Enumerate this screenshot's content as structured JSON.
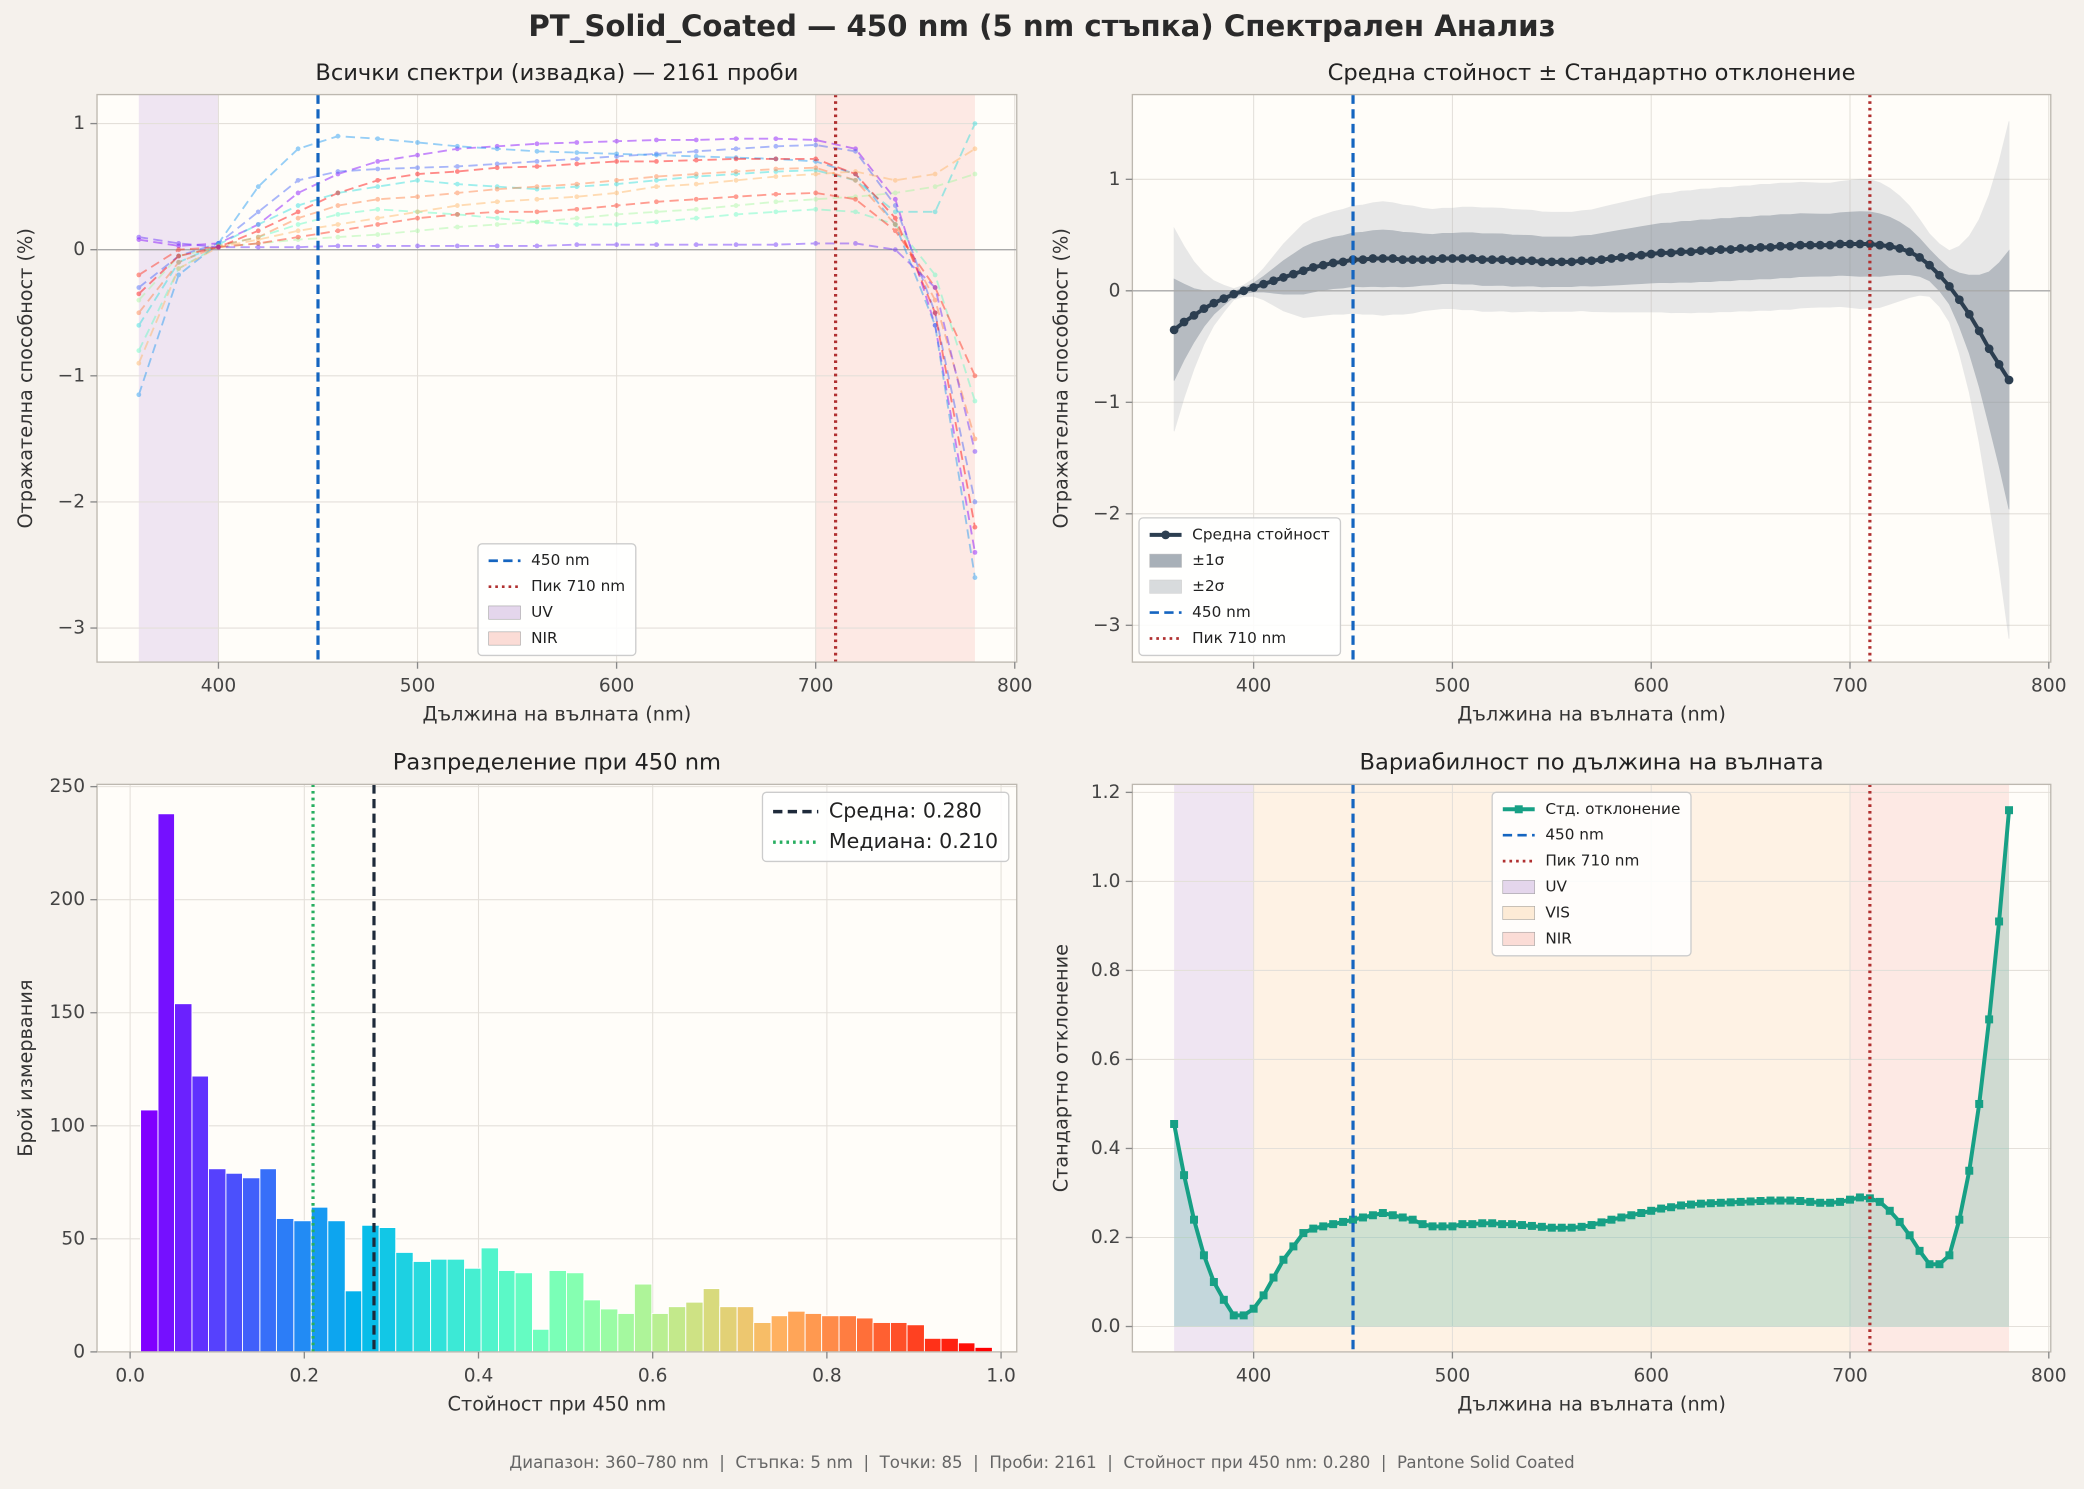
{
  "title": "PT_Solid_Coated — 450 nm (5 nm стъпка) Спектрален Анализ",
  "footer": "Диапазон: 360–780 nm  |  Стъпка: 5 nm  |  Точки: 85  |  Проби: 2161  |  Стойност при 450 nm: 0.280  |  Pantone Solid Coated",
  "chart_data": [
    {
      "type": "line",
      "title": "Всички спектри (извадка) — 2161 проби",
      "xlabel": "Дължина на вълната (nm)",
      "ylabel": "Отражателна способност (%)",
      "xlim": [
        339,
        801
      ],
      "ylim": [
        -3.27,
        1.23
      ],
      "xticks": [
        400,
        500,
        600,
        700,
        800
      ],
      "yticks": [
        {
          "value": -3,
          "label": "−3"
        },
        {
          "value": -2,
          "label": "−2"
        },
        {
          "value": -1,
          "label": "−1"
        },
        0,
        1
      ],
      "grid": true,
      "legend": "lower center",
      "alpha": 0.45,
      "hlines": [
        0
      ],
      "x": [
        360,
        380,
        400,
        420,
        440,
        460,
        480,
        500,
        520,
        540,
        560,
        580,
        600,
        620,
        640,
        660,
        680,
        700,
        720,
        740,
        760,
        780
      ],
      "series": [
        {
          "color": "#8000ff",
          "style": "dashed",
          "marker": "circle",
          "values": [
            0.08,
            0.03,
            0.05,
            0.2,
            0.45,
            0.6,
            0.7,
            0.75,
            0.8,
            0.82,
            0.84,
            0.85,
            0.86,
            0.87,
            0.87,
            0.88,
            0.88,
            0.87,
            0.8,
            0.4,
            -0.6,
            -2.4
          ]
        },
        {
          "color": "#4062fa",
          "style": "dashed",
          "marker": "circle",
          "values": [
            -0.3,
            -0.05,
            0.05,
            0.3,
            0.55,
            0.62,
            0.64,
            0.65,
            0.66,
            0.68,
            0.7,
            0.72,
            0.74,
            0.76,
            0.78,
            0.8,
            0.82,
            0.83,
            0.78,
            0.35,
            -0.5,
            -2.0
          ]
        },
        {
          "color": "#1996f3",
          "style": "dashed",
          "marker": "circle",
          "values": [
            -1.15,
            -0.2,
            0.05,
            0.5,
            0.8,
            0.9,
            0.88,
            0.85,
            0.82,
            0.8,
            0.78,
            0.77,
            0.76,
            0.75,
            0.74,
            0.73,
            0.72,
            0.7,
            0.6,
            0.2,
            -0.6,
            -2.6
          ]
        },
        {
          "color": "#2adddd",
          "style": "dashed",
          "marker": "circle",
          "values": [
            -0.6,
            -0.1,
            0.04,
            0.2,
            0.35,
            0.45,
            0.5,
            0.55,
            0.52,
            0.5,
            0.48,
            0.5,
            0.52,
            0.55,
            0.58,
            0.6,
            0.62,
            0.63,
            0.55,
            0.3,
            0.3,
            1.0
          ]
        },
        {
          "color": "#62fbc4",
          "style": "dashed",
          "marker": "circle",
          "values": [
            -0.8,
            -0.15,
            0.03,
            0.1,
            0.2,
            0.28,
            0.32,
            0.3,
            0.28,
            0.25,
            0.22,
            0.2,
            0.2,
            0.22,
            0.25,
            0.28,
            0.3,
            0.32,
            0.3,
            0.2,
            -0.2,
            -1.2
          ]
        },
        {
          "color": "#a4f89f",
          "style": "dashed",
          "marker": "circle",
          "values": [
            -0.4,
            -0.05,
            0.02,
            0.05,
            0.08,
            0.1,
            0.12,
            0.15,
            0.18,
            0.2,
            0.22,
            0.25,
            0.28,
            0.3,
            0.32,
            0.35,
            0.38,
            0.4,
            0.42,
            0.45,
            0.5,
            0.6
          ]
        },
        {
          "color": "#ffb360",
          "style": "dashed",
          "marker": "circle",
          "values": [
            -0.9,
            -0.15,
            0.02,
            0.08,
            0.15,
            0.2,
            0.25,
            0.3,
            0.35,
            0.38,
            0.4,
            0.42,
            0.45,
            0.5,
            0.52,
            0.55,
            0.58,
            0.6,
            0.62,
            0.55,
            0.6,
            0.8
          ]
        },
        {
          "color": "#ff7e41",
          "style": "dashed",
          "marker": "circle",
          "values": [
            -0.5,
            -0.1,
            0.03,
            0.1,
            0.25,
            0.35,
            0.4,
            0.42,
            0.45,
            0.48,
            0.5,
            0.52,
            0.55,
            0.58,
            0.6,
            0.62,
            0.64,
            0.65,
            0.55,
            0.2,
            -0.4,
            -1.5
          ]
        },
        {
          "color": "#ff0000",
          "style": "dashed",
          "marker": "circle",
          "values": [
            -0.35,
            -0.05,
            0.02,
            0.15,
            0.3,
            0.45,
            0.55,
            0.6,
            0.62,
            0.65,
            0.66,
            0.68,
            0.7,
            0.7,
            0.71,
            0.72,
            0.72,
            0.72,
            0.6,
            0.25,
            -0.5,
            -2.2
          ]
        },
        {
          "color": "#ff2a15",
          "style": "dashed",
          "marker": "circle",
          "values": [
            -0.2,
            0.0,
            0.02,
            0.05,
            0.1,
            0.15,
            0.2,
            0.25,
            0.28,
            0.3,
            0.3,
            0.32,
            0.35,
            0.38,
            0.4,
            0.42,
            0.44,
            0.45,
            0.4,
            0.15,
            -0.3,
            -1.0
          ]
        },
        {
          "color": "#6629fe",
          "style": "dashed",
          "marker": "circle",
          "values": [
            0.1,
            0.05,
            0.02,
            0.02,
            0.02,
            0.03,
            0.03,
            0.03,
            0.03,
            0.03,
            0.03,
            0.04,
            0.04,
            0.04,
            0.04,
            0.04,
            0.04,
            0.05,
            0.05,
            0.0,
            -0.3,
            -1.6
          ]
        }
      ],
      "vlines": [
        {
          "name": "450 nm",
          "value": 450,
          "color": "#1565c0",
          "style": "dashed"
        },
        {
          "name": "Пик 710 nm",
          "value": 710,
          "color": "#b03030",
          "style": "dotted"
        }
      ],
      "spans": [
        {
          "name": "UV",
          "range": [
            360,
            400
          ],
          "color": "#e4d6ec"
        },
        {
          "name": "NIR",
          "range": [
            700,
            780
          ],
          "color": "#fbdcd6"
        }
      ]
    },
    {
      "type": "line",
      "title": "Средна стойност ± Стандартно отклонение",
      "xlabel": "Дължина на вълната (nm)",
      "ylabel": "Отражателна способност (%)",
      "xlim": [
        339,
        801
      ],
      "ylim": [
        -3.33,
        1.76
      ],
      "xticks": [
        400,
        500,
        600,
        700,
        800
      ],
      "yticks": [
        {
          "value": -3,
          "label": "−3"
        },
        {
          "value": -2,
          "label": "−2"
        },
        {
          "value": -1,
          "label": "−1"
        },
        0,
        1
      ],
      "grid": true,
      "legend": "lower left",
      "hlines": [
        0
      ],
      "x": [
        360,
        365,
        370,
        375,
        380,
        385,
        390,
        395,
        400,
        405,
        410,
        415,
        420,
        425,
        430,
        435,
        440,
        445,
        450,
        455,
        460,
        465,
        470,
        475,
        480,
        485,
        490,
        495,
        500,
        505,
        510,
        515,
        520,
        525,
        530,
        535,
        540,
        545,
        550,
        555,
        560,
        565,
        570,
        575,
        580,
        585,
        590,
        595,
        600,
        605,
        610,
        615,
        620,
        625,
        630,
        635,
        640,
        645,
        650,
        655,
        660,
        665,
        670,
        675,
        680,
        685,
        690,
        695,
        700,
        705,
        710,
        715,
        720,
        725,
        730,
        735,
        740,
        745,
        750,
        755,
        760,
        765,
        770,
        775,
        780
      ],
      "series": [
        {
          "name": "Средна стойност",
          "color": "#2c3e50",
          "style": "solid",
          "marker": "circle",
          "values": [
            -0.35,
            -0.28,
            -0.22,
            -0.16,
            -0.11,
            -0.07,
            -0.03,
            0.0,
            0.03,
            0.06,
            0.09,
            0.12,
            0.15,
            0.18,
            0.21,
            0.23,
            0.25,
            0.26,
            0.28,
            0.28,
            0.29,
            0.29,
            0.29,
            0.28,
            0.28,
            0.28,
            0.28,
            0.29,
            0.29,
            0.29,
            0.29,
            0.28,
            0.28,
            0.28,
            0.27,
            0.27,
            0.27,
            0.26,
            0.26,
            0.26,
            0.26,
            0.27,
            0.27,
            0.28,
            0.29,
            0.3,
            0.31,
            0.32,
            0.33,
            0.34,
            0.34,
            0.35,
            0.35,
            0.36,
            0.36,
            0.37,
            0.37,
            0.38,
            0.38,
            0.39,
            0.39,
            0.4,
            0.4,
            0.41,
            0.41,
            0.41,
            0.41,
            0.42,
            0.42,
            0.42,
            0.42,
            0.41,
            0.4,
            0.38,
            0.35,
            0.3,
            0.23,
            0.14,
            0.04,
            -0.08,
            -0.21,
            -0.36,
            -0.52,
            -0.66,
            -0.8
          ]
        }
      ],
      "bands": [
        {
          "name": "±1σ",
          "k": 1,
          "color": "#7b8794",
          "opacity": 0.45
        },
        {
          "name": "±2σ",
          "k": 2,
          "color": "#b3b8be",
          "opacity": 0.3
        }
      ],
      "vlines": [
        {
          "name": "450 nm",
          "value": 450,
          "color": "#1565c0",
          "style": "dashed"
        },
        {
          "name": "Пик 710 nm",
          "value": 710,
          "color": "#b03030",
          "style": "dotted"
        }
      ]
    },
    {
      "type": "histogram",
      "title": "Разпределение при 450 nm",
      "xlabel": "Стойност при 450 nm",
      "ylabel": "Брой измервания",
      "xlim": [
        -0.038,
        1.018
      ],
      "ylim": [
        0,
        251
      ],
      "xticks": [
        {
          "value": 0,
          "label": "0.0"
        },
        0.2,
        0.4,
        0.6,
        0.8,
        {
          "value": 1,
          "label": "1.0"
        }
      ],
      "yticks": [
        0,
        50,
        100,
        150,
        200,
        250
      ],
      "grid": true,
      "legend": "upper right",
      "colormap": "rainbow",
      "bins": [
        0.012,
        0.032,
        0.051,
        0.071,
        0.09,
        0.11,
        0.129,
        0.149,
        0.168,
        0.188,
        0.208,
        0.227,
        0.247,
        0.266,
        0.286,
        0.305,
        0.325,
        0.345,
        0.364,
        0.384,
        0.403,
        0.423,
        0.442,
        0.462,
        0.481,
        0.501,
        0.521,
        0.54,
        0.56,
        0.579,
        0.599,
        0.618,
        0.638,
        0.658,
        0.677,
        0.697,
        0.716,
        0.736,
        0.755,
        0.775,
        0.794,
        0.814,
        0.834,
        0.853,
        0.873,
        0.892,
        0.912,
        0.931,
        0.951,
        0.97,
        0.99
      ],
      "values": [
        107,
        238,
        154,
        122,
        81,
        79,
        77,
        81,
        59,
        58,
        64,
        58,
        27,
        56,
        55,
        44,
        40,
        41,
        41,
        37,
        46,
        36,
        35,
        10,
        36,
        35,
        23,
        19,
        17,
        30,
        17,
        20,
        22,
        28,
        20,
        20,
        13,
        16,
        18,
        17,
        16,
        16,
        15,
        13,
        13,
        12,
        6,
        6,
        4,
        2
      ],
      "vlines": [
        {
          "name": "Средна: 0.280",
          "value": 0.28,
          "color": "#1e2a3a",
          "style": "dashed"
        },
        {
          "name": "Медиана: 0.210",
          "value": 0.21,
          "color": "#27ae60",
          "style": "dotted"
        }
      ]
    },
    {
      "type": "line",
      "title": "Вариабилност по дължина на вълната",
      "xlabel": "Дължина на вълната (nm)",
      "ylabel": "Стандартно отклонение",
      "xlim": [
        339,
        801
      ],
      "ylim": [
        -0.057,
        1.218
      ],
      "xticks": [
        400,
        500,
        600,
        700,
        800
      ],
      "yticks": [
        {
          "value": 0,
          "label": "0.0"
        },
        0.2,
        0.4,
        0.6,
        0.8,
        {
          "value": 1,
          "label": "1.0"
        },
        1.2
      ],
      "grid": true,
      "legend": "upper center",
      "x": [
        360,
        365,
        370,
        375,
        380,
        385,
        390,
        395,
        400,
        405,
        410,
        415,
        420,
        425,
        430,
        435,
        440,
        445,
        450,
        455,
        460,
        465,
        470,
        475,
        480,
        485,
        490,
        495,
        500,
        505,
        510,
        515,
        520,
        525,
        530,
        535,
        540,
        545,
        550,
        555,
        560,
        565,
        570,
        575,
        580,
        585,
        590,
        595,
        600,
        605,
        610,
        615,
        620,
        625,
        630,
        635,
        640,
        645,
        650,
        655,
        660,
        665,
        670,
        675,
        680,
        685,
        690,
        695,
        700,
        705,
        710,
        715,
        720,
        725,
        730,
        735,
        740,
        745,
        750,
        755,
        760,
        765,
        770,
        775,
        780
      ],
      "series": [
        {
          "name": "Стд. отклонение",
          "color": "#17a085",
          "style": "solid",
          "marker": "square",
          "fill": true,
          "values": [
            0.455,
            0.34,
            0.24,
            0.16,
            0.1,
            0.06,
            0.025,
            0.025,
            0.04,
            0.07,
            0.11,
            0.15,
            0.18,
            0.21,
            0.22,
            0.225,
            0.23,
            0.235,
            0.24,
            0.245,
            0.25,
            0.255,
            0.25,
            0.245,
            0.24,
            0.23,
            0.225,
            0.225,
            0.225,
            0.23,
            0.23,
            0.232,
            0.232,
            0.23,
            0.23,
            0.228,
            0.226,
            0.224,
            0.222,
            0.222,
            0.222,
            0.224,
            0.228,
            0.234,
            0.24,
            0.245,
            0.25,
            0.255,
            0.26,
            0.265,
            0.268,
            0.272,
            0.274,
            0.276,
            0.277,
            0.278,
            0.279,
            0.28,
            0.281,
            0.282,
            0.283,
            0.283,
            0.283,
            0.282,
            0.28,
            0.278,
            0.278,
            0.28,
            0.285,
            0.29,
            0.288,
            0.28,
            0.26,
            0.235,
            0.205,
            0.17,
            0.14,
            0.14,
            0.16,
            0.24,
            0.35,
            0.5,
            0.69,
            0.91,
            1.16
          ]
        }
      ],
      "vlines": [
        {
          "name": "450 nm",
          "value": 450,
          "color": "#1565c0",
          "style": "dashed"
        },
        {
          "name": "Пик 710 nm",
          "value": 710,
          "color": "#b03030",
          "style": "dotted"
        }
      ],
      "spans": [
        {
          "name": "UV",
          "range": [
            360,
            400
          ],
          "color": "#e4d6ec"
        },
        {
          "name": "VIS",
          "range": [
            400,
            700
          ],
          "color": "#fdebd6"
        },
        {
          "name": "NIR",
          "range": [
            700,
            780
          ],
          "color": "#fbdcd6"
        }
      ]
    }
  ]
}
